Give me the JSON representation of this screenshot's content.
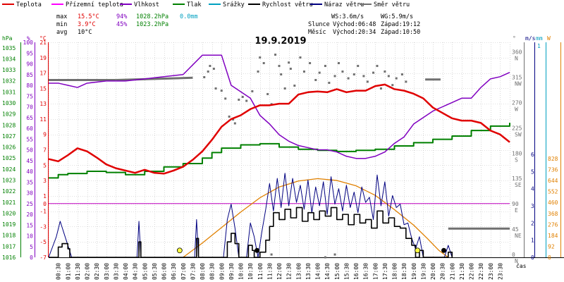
{
  "chart_data": {
    "type": "line",
    "title": "19.9.2019",
    "colors": {
      "temp": "#e00000",
      "feels": "#ff00ff",
      "humidity": "#8000c0",
      "pressure": "#008000",
      "rain": "#00a0c0",
      "wind": "#000000",
      "gust": "#000080",
      "dir": "#707070",
      "sun": "#e08000",
      "zero": "#c000c0",
      "grid": "#c0c0c0"
    },
    "legend": [
      {
        "key": "temp",
        "label": "Teplota"
      },
      {
        "key": "feels",
        "label": "Přízemní teplota"
      },
      {
        "key": "humidity",
        "label": "Vlhkost"
      },
      {
        "key": "pressure",
        "label": "Tlak"
      },
      {
        "key": "rain",
        "label": "Srážky"
      },
      {
        "key": "wind",
        "label": "Rychlost větru"
      },
      {
        "key": "gust",
        "label": "Náraz větru"
      },
      {
        "key": "dir",
        "label": "Směr větru"
      }
    ],
    "stats": {
      "max_label": "max",
      "max_temp": "15.5°C",
      "max_hum": "94%",
      "max_pres": "1028.2hPa",
      "max_rain": "0.0mm",
      "min_label": "min",
      "min_temp": "3.9°C",
      "min_hum": "45%",
      "min_pres": "1023.2hPa",
      "avg_label": "avg",
      "avg_temp": "10°C"
    },
    "info": {
      "ws": "WS:3.6m/s",
      "wg": "WG:5.9m/s",
      "sun_label": "Slunce",
      "sunrise": "Východ:06:48",
      "sunset": "Západ:19:12",
      "moon_label": "Měsíc",
      "moonrise": "Východ:20:34",
      "moonset": "Západ:10:50"
    },
    "axes": {
      "hpa_title": "hPa",
      "pct_title": "%",
      "c_title": "°C",
      "deg_title": "°",
      "ms_title": "m/s",
      "mm_title": "mm",
      "w_title": "W",
      "time_title": "čas",
      "hpa": [
        "1016",
        "1017",
        "1018",
        "1019",
        "1020",
        "1021",
        "1022",
        "1023",
        "1024",
        "1025",
        "1026",
        "1027",
        "1028",
        "1029",
        "1030",
        "1031",
        "1032",
        "1033",
        "1034",
        "1035"
      ],
      "pct": [
        "0",
        "5",
        "10",
        "15",
        "20",
        "25",
        "30",
        "35",
        "40",
        "45",
        "50",
        "55",
        "60",
        "65",
        "70",
        "75",
        "80",
        "85",
        "90",
        "95",
        "100"
      ],
      "celsius": [
        {
          "v": -7,
          "t": "-7"
        },
        {
          "v": -5,
          "t": "-5"
        },
        {
          "v": -3,
          "t": "-3"
        },
        {
          "v": -1,
          "t": "-1"
        },
        {
          "v": 0,
          "t": "0"
        },
        {
          "v": 1,
          "t": "1"
        },
        {
          "v": 3,
          "t": "3"
        },
        {
          "v": 5,
          "t": "5"
        },
        {
          "v": 7,
          "t": "7"
        },
        {
          "v": 9,
          "t": "9"
        },
        {
          "v": 11,
          "t": "11"
        },
        {
          "v": 13,
          "t": "13"
        },
        {
          "v": 15,
          "t": "15"
        },
        {
          "v": 17,
          "t": "17"
        },
        {
          "v": 19,
          "t": "19"
        },
        {
          "v": 21,
          "t": "21"
        }
      ],
      "degrees": [
        {
          "v": 0,
          "t": "0",
          "d": "N"
        },
        {
          "v": 45,
          "t": "45",
          "d": "NE"
        },
        {
          "v": 90,
          "t": "90",
          "d": "E"
        },
        {
          "v": 135,
          "t": "135",
          "d": "SE"
        },
        {
          "v": 180,
          "t": "180",
          "d": "S"
        },
        {
          "v": 225,
          "t": "225",
          "d": "SW"
        },
        {
          "v": 270,
          "t": "270",
          "d": "W"
        },
        {
          "v": 315,
          "t": "315",
          "d": "NW"
        },
        {
          "v": 360,
          "t": "360",
          "d": "N"
        }
      ],
      "ms": [
        "0",
        "1",
        "2",
        "3",
        "4",
        "5",
        "6"
      ],
      "mm_top": "1",
      "watts": [
        "0",
        "92",
        "184",
        "276",
        "368",
        "460",
        "552",
        "644",
        "736",
        "828"
      ],
      "time": [
        "00:30",
        "01:00",
        "01:30",
        "02:00",
        "02:30",
        "03:00",
        "03:30",
        "04:00",
        "04:30",
        "05:00",
        "05:30",
        "06:00",
        "06:30",
        "07:00",
        "07:30",
        "08:00",
        "08:30",
        "09:00",
        "09:30",
        "10:00",
        "10:30",
        "11:00",
        "11:30",
        "12:00",
        "12:30",
        "13:00",
        "13:30",
        "14:00",
        "14:30",
        "15:00",
        "15:30",
        "16:00",
        "16:30",
        "17:00",
        "17:30",
        "18:00",
        "18:30",
        "19:00",
        "19:30",
        "20:00",
        "20:30",
        "21:00",
        "21:30",
        "22:00",
        "22:30",
        "23:00",
        "23:30"
      ]
    },
    "temperature": [
      [
        0.0,
        5.8
      ],
      [
        0.5,
        5.5
      ],
      [
        1.0,
        6.3
      ],
      [
        1.5,
        7.2
      ],
      [
        2.0,
        6.8
      ],
      [
        2.5,
        6.0
      ],
      [
        3.0,
        5.1
      ],
      [
        3.5,
        4.6
      ],
      [
        4.0,
        4.3
      ],
      [
        4.5,
        4.0
      ],
      [
        5.0,
        4.4
      ],
      [
        5.5,
        4.0
      ],
      [
        6.0,
        3.9
      ],
      [
        6.5,
        4.3
      ],
      [
        7.0,
        4.8
      ],
      [
        7.5,
        5.7
      ],
      [
        8.0,
        6.8
      ],
      [
        8.5,
        8.3
      ],
      [
        9.0,
        10.0
      ],
      [
        9.5,
        11.0
      ],
      [
        10.0,
        11.5
      ],
      [
        10.5,
        12.3
      ],
      [
        11.0,
        12.8
      ],
      [
        11.5,
        12.8
      ],
      [
        12.0,
        13.0
      ],
      [
        12.5,
        13.0
      ],
      [
        13.0,
        14.2
      ],
      [
        13.5,
        14.5
      ],
      [
        14.0,
        14.6
      ],
      [
        14.5,
        14.5
      ],
      [
        15.0,
        14.9
      ],
      [
        15.5,
        14.5
      ],
      [
        16.0,
        14.7
      ],
      [
        16.5,
        14.7
      ],
      [
        17.0,
        15.3
      ],
      [
        17.5,
        15.5
      ],
      [
        18.0,
        14.9
      ],
      [
        18.5,
        14.7
      ],
      [
        19.0,
        14.3
      ],
      [
        19.5,
        13.7
      ],
      [
        20.0,
        12.5
      ],
      [
        20.5,
        11.8
      ],
      [
        21.0,
        11.1
      ],
      [
        21.5,
        10.8
      ],
      [
        22.0,
        10.8
      ],
      [
        22.5,
        10.5
      ],
      [
        23.0,
        9.5
      ],
      [
        23.5,
        9.0
      ],
      [
        24.0,
        8.0
      ]
    ],
    "humidity": [
      [
        0.0,
        81
      ],
      [
        0.5,
        81
      ],
      [
        1.0,
        80
      ],
      [
        1.5,
        79
      ],
      [
        2.0,
        81
      ],
      [
        3.0,
        82
      ],
      [
        4.0,
        82
      ],
      [
        5.0,
        83
      ],
      [
        6.0,
        84
      ],
      [
        7.0,
        85
      ],
      [
        8.0,
        94
      ],
      [
        9.0,
        94
      ],
      [
        9.5,
        80
      ],
      [
        10.5,
        74
      ],
      [
        11.0,
        66
      ],
      [
        11.5,
        62
      ],
      [
        12.0,
        57
      ],
      [
        12.5,
        54
      ],
      [
        13.0,
        52
      ],
      [
        13.5,
        51
      ],
      [
        14.0,
        50
      ],
      [
        14.5,
        50
      ],
      [
        15.0,
        49
      ],
      [
        15.5,
        47
      ],
      [
        16.0,
        46
      ],
      [
        16.5,
        46
      ],
      [
        17.0,
        47
      ],
      [
        17.5,
        49
      ],
      [
        18.0,
        53
      ],
      [
        18.5,
        56
      ],
      [
        19.0,
        62
      ],
      [
        19.5,
        65
      ],
      [
        20.0,
        68
      ],
      [
        20.5,
        70
      ],
      [
        21.0,
        72
      ],
      [
        21.5,
        74
      ],
      [
        22.0,
        74
      ],
      [
        22.5,
        79
      ],
      [
        23.0,
        83
      ],
      [
        23.5,
        84
      ],
      [
        24.0,
        86
      ]
    ],
    "pressure": [
      [
        0.0,
        1023.2
      ],
      [
        0.5,
        1023.5
      ],
      [
        1.0,
        1023.6
      ],
      [
        2.0,
        1023.8
      ],
      [
        3.0,
        1023.7
      ],
      [
        4.0,
        1023.5
      ],
      [
        5.0,
        1023.8
      ],
      [
        6.0,
        1024.2
      ],
      [
        7.0,
        1024.5
      ],
      [
        8.0,
        1025.0
      ],
      [
        8.5,
        1025.5
      ],
      [
        9.0,
        1025.9
      ],
      [
        10.0,
        1026.2
      ],
      [
        11.0,
        1026.3
      ],
      [
        12.0,
        1026.0
      ],
      [
        13.0,
        1025.8
      ],
      [
        14.0,
        1025.7
      ],
      [
        15.0,
        1025.6
      ],
      [
        16.0,
        1025.7
      ],
      [
        17.0,
        1025.8
      ],
      [
        18.0,
        1026.1
      ],
      [
        19.0,
        1026.4
      ],
      [
        20.0,
        1026.7
      ],
      [
        21.0,
        1027.0
      ],
      [
        22.0,
        1027.5
      ],
      [
        23.0,
        1027.9
      ],
      [
        24.0,
        1028.2
      ]
    ],
    "solar": [
      [
        7.0,
        0
      ],
      [
        8.0,
        120
      ],
      [
        9.0,
        250
      ],
      [
        10.0,
        380
      ],
      [
        11.0,
        500
      ],
      [
        12.0,
        590
      ],
      [
        13.0,
        640
      ],
      [
        14.0,
        660
      ],
      [
        15.0,
        645
      ],
      [
        16.0,
        600
      ],
      [
        17.0,
        520
      ],
      [
        18.0,
        400
      ],
      [
        19.0,
        270
      ],
      [
        19.7,
        160
      ],
      [
        20.3,
        60
      ],
      [
        20.8,
        0
      ]
    ],
    "wind_speed": [
      [
        0.0,
        0
      ],
      [
        0.3,
        0
      ],
      [
        0.5,
        0.6
      ],
      [
        0.7,
        0.8
      ],
      [
        1.0,
        0.5
      ],
      [
        1.1,
        0
      ],
      [
        1.5,
        0
      ],
      [
        4.6,
        0
      ],
      [
        4.7,
        0.9
      ],
      [
        4.8,
        0
      ],
      [
        7.6,
        0
      ],
      [
        7.7,
        1.1
      ],
      [
        7.8,
        0
      ],
      [
        9.2,
        0
      ],
      [
        9.3,
        0.9
      ],
      [
        9.5,
        1.4
      ],
      [
        9.7,
        0.8
      ],
      [
        9.9,
        0
      ],
      [
        10.3,
        0
      ],
      [
        10.4,
        0.7
      ],
      [
        10.6,
        0.4
      ],
      [
        10.7,
        0
      ],
      [
        11.0,
        0.3
      ],
      [
        11.3,
        1.0
      ],
      [
        11.5,
        1.8
      ],
      [
        11.7,
        2.6
      ],
      [
        12.0,
        2.2
      ],
      [
        12.3,
        2.8
      ],
      [
        12.6,
        2.3
      ],
      [
        12.9,
        2.9
      ],
      [
        13.2,
        2.1
      ],
      [
        13.5,
        2.6
      ],
      [
        13.8,
        2.2
      ],
      [
        14.1,
        2.7
      ],
      [
        14.4,
        2.4
      ],
      [
        14.7,
        2.9
      ],
      [
        15.0,
        2.2
      ],
      [
        15.3,
        2.5
      ],
      [
        15.6,
        1.9
      ],
      [
        15.9,
        2.5
      ],
      [
        16.2,
        2.0
      ],
      [
        16.5,
        2.2
      ],
      [
        16.8,
        1.7
      ],
      [
        17.1,
        2.7
      ],
      [
        17.4,
        2.0
      ],
      [
        17.7,
        2.3
      ],
      [
        18.0,
        1.8
      ],
      [
        18.3,
        1.7
      ],
      [
        18.6,
        1.1
      ],
      [
        18.9,
        0.7
      ],
      [
        19.1,
        0
      ],
      [
        19.3,
        0.4
      ],
      [
        19.5,
        0
      ],
      [
        20.6,
        0
      ],
      [
        20.8,
        0.3
      ],
      [
        21.0,
        0
      ]
    ],
    "wind_gust": [
      [
        0.0,
        0
      ],
      [
        0.4,
        1.2
      ],
      [
        0.6,
        2.1
      ],
      [
        0.8,
        1.4
      ],
      [
        1.0,
        0.7
      ],
      [
        1.2,
        0
      ],
      [
        4.6,
        0
      ],
      [
        4.7,
        2.1
      ],
      [
        4.8,
        0
      ],
      [
        7.6,
        0
      ],
      [
        7.7,
        2.2
      ],
      [
        7.8,
        0
      ],
      [
        9.1,
        0
      ],
      [
        9.3,
        2.2
      ],
      [
        9.5,
        3.1
      ],
      [
        9.7,
        1.7
      ],
      [
        9.9,
        0
      ],
      [
        10.3,
        0
      ],
      [
        10.5,
        2.0
      ],
      [
        10.7,
        1.2
      ],
      [
        10.9,
        0
      ],
      [
        11.1,
        1.5
      ],
      [
        11.3,
        2.8
      ],
      [
        11.5,
        4.3
      ],
      [
        11.7,
        2.7
      ],
      [
        11.9,
        4.6
      ],
      [
        12.1,
        2.9
      ],
      [
        12.3,
        4.9
      ],
      [
        12.5,
        3.0
      ],
      [
        12.7,
        4.6
      ],
      [
        12.9,
        3.2
      ],
      [
        13.1,
        4.2
      ],
      [
        13.3,
        2.8
      ],
      [
        13.5,
        4.5
      ],
      [
        13.7,
        2.6
      ],
      [
        13.9,
        4.1
      ],
      [
        14.1,
        3.0
      ],
      [
        14.3,
        4.4
      ],
      [
        14.5,
        2.5
      ],
      [
        14.7,
        4.7
      ],
      [
        14.9,
        3.1
      ],
      [
        15.1,
        4.0
      ],
      [
        15.3,
        2.7
      ],
      [
        15.5,
        4.2
      ],
      [
        15.7,
        2.9
      ],
      [
        15.9,
        3.8
      ],
      [
        16.1,
        2.6
      ],
      [
        16.3,
        4.1
      ],
      [
        16.5,
        3.2
      ],
      [
        16.7,
        3.5
      ],
      [
        16.9,
        2.2
      ],
      [
        17.1,
        4.8
      ],
      [
        17.3,
        3.0
      ],
      [
        17.5,
        4.4
      ],
      [
        17.7,
        2.4
      ],
      [
        17.9,
        3.6
      ],
      [
        18.1,
        2.9
      ],
      [
        18.3,
        3.1
      ],
      [
        18.5,
        1.9
      ],
      [
        18.7,
        2.0
      ],
      [
        18.9,
        1.1
      ],
      [
        19.1,
        0.5
      ],
      [
        19.3,
        1.2
      ],
      [
        19.5,
        0
      ],
      [
        20.6,
        0
      ],
      [
        20.8,
        0.7
      ],
      [
        21.0,
        0
      ]
    ],
    "wind_dir_avg": [
      [
        [
          0.0,
          315
        ],
        [
          3.5,
          315
        ]
      ],
      [
        [
          3.5,
          315
        ],
        [
          7.5,
          319
        ]
      ],
      [
        [
          19.6,
          316
        ],
        [
          20.4,
          316
        ]
      ],
      [
        [
          20.8,
          51
        ],
        [
          24.0,
          51
        ]
      ]
    ],
    "wind_dir_samples": [
      [
        8.1,
        320
      ],
      [
        8.3,
        330
      ],
      [
        8.4,
        340
      ],
      [
        8.6,
        335
      ],
      [
        8.7,
        300
      ],
      [
        9.0,
        296
      ],
      [
        9.2,
        282
      ],
      [
        9.4,
        250
      ],
      [
        9.6,
        245
      ],
      [
        9.7,
        238
      ],
      [
        9.9,
        280
      ],
      [
        10.1,
        285
      ],
      [
        10.3,
        278
      ],
      [
        10.6,
        295
      ],
      [
        10.9,
        330
      ],
      [
        11.0,
        355
      ],
      [
        11.2,
        345
      ],
      [
        11.4,
        290
      ],
      [
        11.6,
        272
      ],
      [
        11.8,
        360
      ],
      [
        12.0,
        340
      ],
      [
        12.1,
        325
      ],
      [
        12.3,
        300
      ],
      [
        12.5,
        346
      ],
      [
        12.6,
        335
      ],
      [
        12.8,
        305
      ],
      [
        13.1,
        355
      ],
      [
        13.3,
        330
      ],
      [
        13.6,
        345
      ],
      [
        13.9,
        315
      ],
      [
        14.1,
        328
      ],
      [
        14.4,
        340
      ],
      [
        14.6,
        310
      ],
      [
        14.9,
        322
      ],
      [
        15.1,
        345
      ],
      [
        15.3,
        330
      ],
      [
        15.6,
        318
      ],
      [
        15.9,
        325
      ],
      [
        16.1,
        340
      ],
      [
        16.4,
        322
      ],
      [
        16.6,
        312
      ],
      [
        16.9,
        328
      ],
      [
        17.1,
        340
      ],
      [
        17.3,
        300
      ],
      [
        17.5,
        330
      ],
      [
        17.7,
        322
      ],
      [
        17.9,
        306
      ],
      [
        18.1,
        318
      ],
      [
        18.4,
        325
      ],
      [
        18.6,
        312
      ],
      [
        11.6,
        5
      ],
      [
        14.4,
        0
      ],
      [
        14.9,
        5
      ]
    ],
    "sun_markers": [
      {
        "t": 6.82,
        "v": 0.4
      },
      {
        "t": 19.2,
        "v": 0.4
      }
    ],
    "moon_markers": [
      {
        "t": 10.85,
        "v": 0.4
      },
      {
        "t": 20.57,
        "v": 0.4
      }
    ]
  }
}
